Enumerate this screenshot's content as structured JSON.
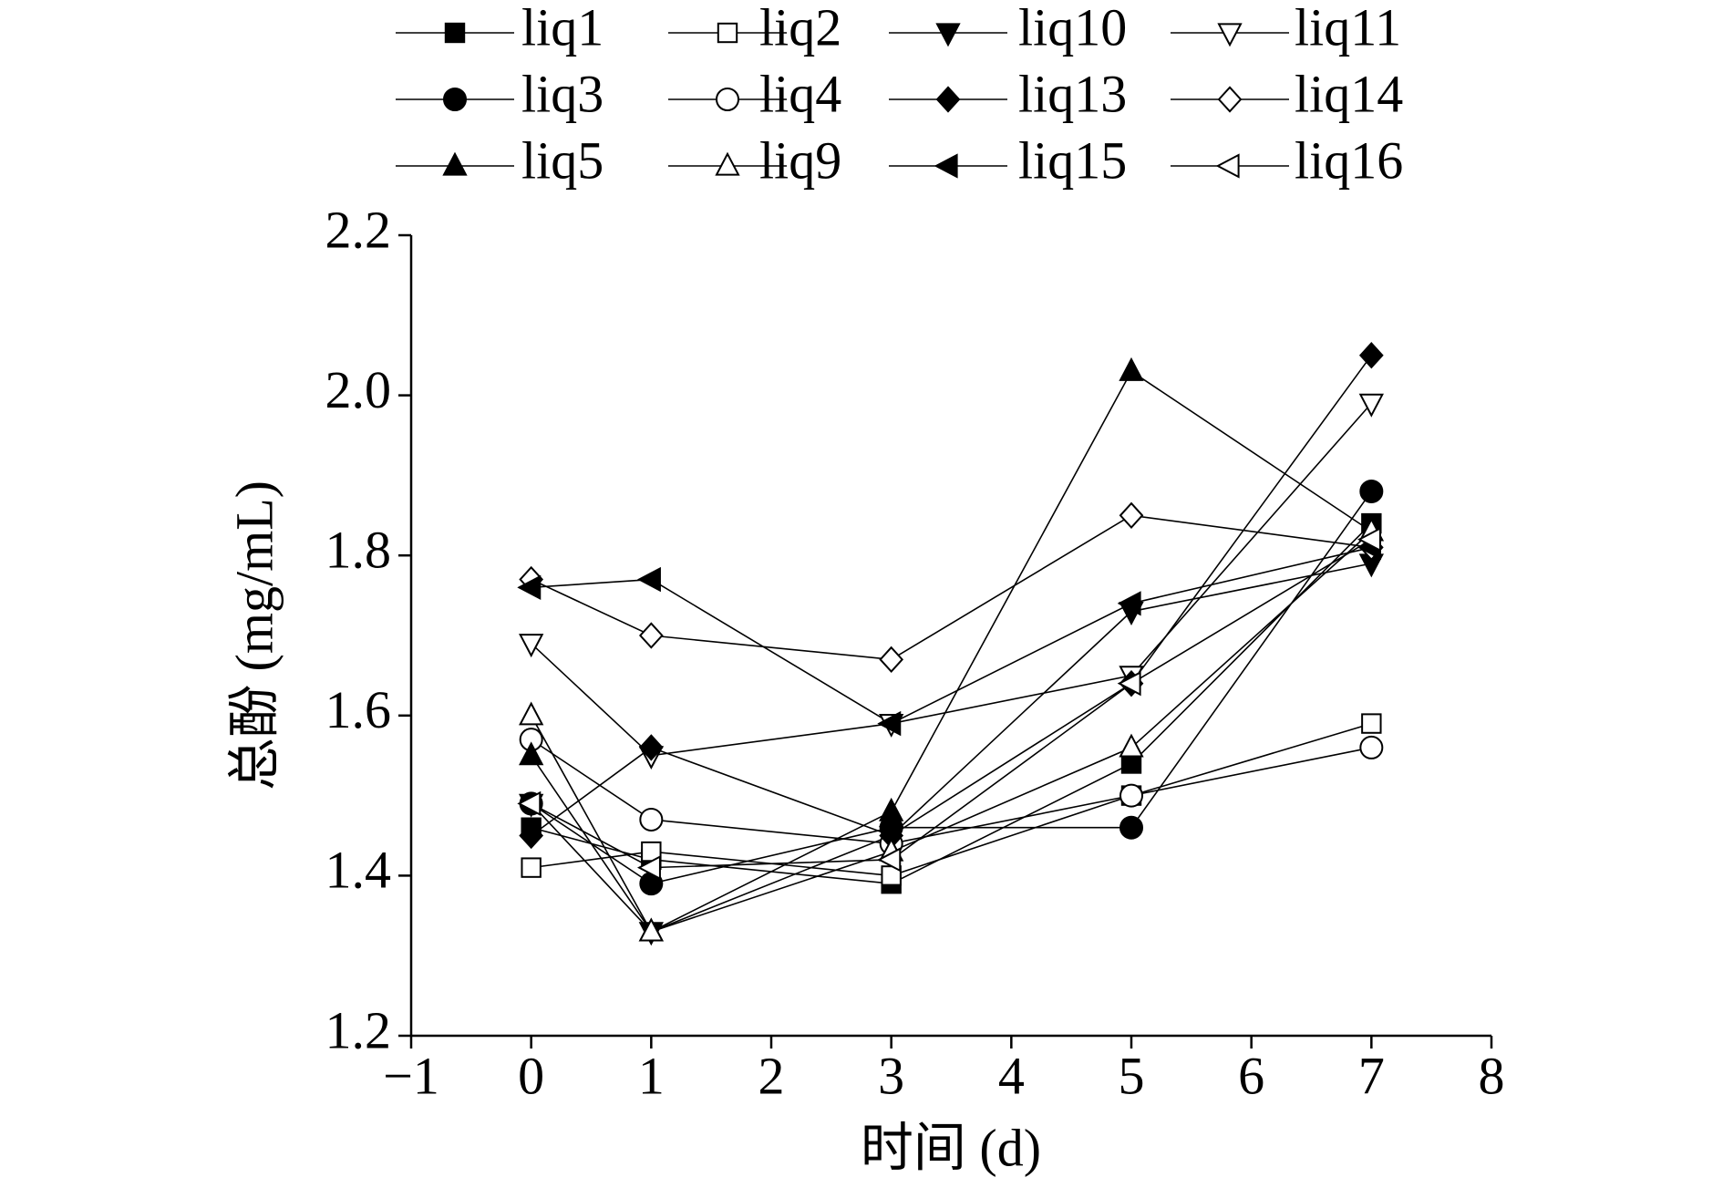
{
  "chart_data": {
    "type": "line",
    "x_label": "时间 (d)",
    "y_label": "总酚 (mg/mL)",
    "x": [
      0,
      1,
      3,
      5,
      7
    ],
    "xlim": [
      -1,
      8
    ],
    "ylim": [
      1.2,
      2.2
    ],
    "xticks": [
      {
        "value": -1,
        "label": "−1"
      },
      0,
      1,
      2,
      3,
      4,
      5,
      6,
      7,
      8
    ],
    "yticks": [
      1.2,
      1.4,
      1.6,
      1.8,
      {
        "value": 2,
        "label": "2.0"
      },
      2.2
    ],
    "series": [
      {
        "name": "liq1",
        "color": "#000",
        "marker": "square",
        "filled": true,
        "values": [
          1.46,
          1.42,
          1.39,
          1.54,
          1.84
        ]
      },
      {
        "name": "liq2",
        "color": "#000",
        "marker": "square",
        "filled": false,
        "values": [
          1.41,
          1.43,
          1.4,
          1.5,
          1.59
        ]
      },
      {
        "name": "liq10",
        "color": "#000",
        "marker": "down",
        "filled": true,
        "values": [
          1.49,
          1.33,
          1.45,
          1.73,
          1.79
        ]
      },
      {
        "name": "liq11",
        "color": "#000",
        "marker": "down",
        "filled": false,
        "values": [
          1.69,
          1.55,
          1.59,
          1.65,
          1.99
        ]
      },
      {
        "name": "liq3",
        "color": "#000",
        "marker": "circle",
        "filled": true,
        "values": [
          1.49,
          1.39,
          1.46,
          1.46,
          1.88
        ]
      },
      {
        "name": "liq4",
        "color": "#000",
        "marker": "circle",
        "filled": false,
        "values": [
          1.57,
          1.47,
          1.44,
          1.5,
          1.56
        ]
      },
      {
        "name": "liq13",
        "color": "#000",
        "marker": "diamond",
        "filled": true,
        "values": [
          1.45,
          1.56,
          1.45,
          1.64,
          2.05
        ]
      },
      {
        "name": "liq14",
        "color": "#000",
        "marker": "diamond",
        "filled": false,
        "values": [
          1.77,
          1.7,
          1.67,
          1.85,
          1.81
        ]
      },
      {
        "name": "liq5",
        "color": "#000",
        "marker": "up",
        "filled": true,
        "values": [
          1.55,
          1.33,
          1.48,
          2.03,
          1.83
        ]
      },
      {
        "name": "liq9",
        "color": "#000",
        "marker": "up",
        "filled": false,
        "values": [
          1.6,
          1.33,
          1.43,
          1.56,
          1.83
        ]
      },
      {
        "name": "liq15",
        "color": "#000",
        "marker": "left",
        "filled": true,
        "values": [
          1.76,
          1.77,
          1.59,
          1.74,
          1.81
        ]
      },
      {
        "name": "liq16",
        "color": "#000",
        "marker": "left",
        "filled": false,
        "values": [
          1.49,
          1.41,
          1.42,
          1.64,
          1.82
        ]
      }
    ]
  }
}
